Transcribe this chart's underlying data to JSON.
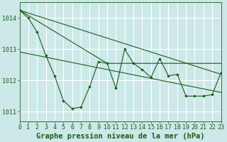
{
  "background_color": "#cce8e8",
  "grid_color": "#ffffff",
  "line_color": "#1a5c1a",
  "marker_color": "#1a5c1a",
  "title": "Graphe pression niveau de la mer (hPa)",
  "xlim": [
    0,
    23
  ],
  "ylim": [
    1010.7,
    1014.5
  ],
  "yticks": [
    1011,
    1012,
    1013,
    1014
  ],
  "xticks": [
    0,
    1,
    2,
    3,
    4,
    5,
    6,
    7,
    8,
    9,
    10,
    11,
    12,
    13,
    14,
    15,
    16,
    17,
    18,
    19,
    20,
    21,
    22,
    23
  ],
  "series1": [
    1014.25,
    1014.0,
    1013.55,
    1012.8,
    1012.15,
    1011.35,
    1011.1,
    1011.15,
    1011.8,
    1012.6,
    1012.55,
    1011.75,
    1013.0,
    1012.55,
    1012.35,
    1012.1,
    1012.7,
    1012.15,
    1012.2,
    1011.5,
    1011.5,
    1011.5,
    1011.55,
    1012.25
  ],
  "trend1_x": [
    0,
    23
  ],
  "trend1_y": [
    1014.25,
    1012.2
  ],
  "trend2_x": [
    0,
    10,
    23
  ],
  "trend2_y": [
    1014.25,
    1012.55,
    1012.55
  ],
  "title_fontsize": 7.5,
  "tick_fontsize": 6
}
